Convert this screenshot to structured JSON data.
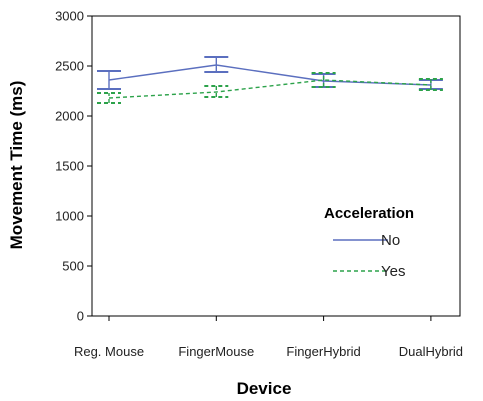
{
  "chart_data": {
    "type": "line",
    "title": "",
    "xlabel": "Device",
    "ylabel": "Movement Time (ms)",
    "categories": [
      "Reg. Mouse",
      "FingerMouse",
      "FingerHybrid",
      "DualHybrid"
    ],
    "ylim": [
      0,
      3000
    ],
    "yticks": [
      0,
      500,
      1000,
      1500,
      2000,
      2500,
      3000
    ],
    "grid": false,
    "error_bars": true,
    "legend": {
      "title": "Acceleration",
      "position": "right"
    },
    "series": [
      {
        "name": "No",
        "color": "#5b6fbf",
        "dash": "solid",
        "values": [
          2360,
          2510,
          2350,
          2310
        ],
        "err_low": [
          2270,
          2440,
          2290,
          2270
        ],
        "err_high": [
          2450,
          2590,
          2420,
          2360
        ]
      },
      {
        "name": "Yes",
        "color": "#2ca24a",
        "dash": "dashed",
        "values": [
          2180,
          2240,
          2360,
          2310
        ],
        "err_low": [
          2130,
          2190,
          2290,
          2260
        ],
        "err_high": [
          2230,
          2300,
          2430,
          2370
        ]
      }
    ]
  }
}
